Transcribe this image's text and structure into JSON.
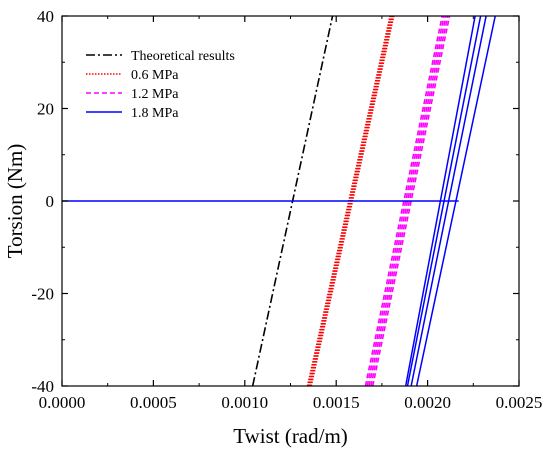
{
  "chart_data": {
    "type": "line",
    "xlabel": "Twist (rad/m)",
    "ylabel": "Torsion (Nm)",
    "xlim": [
      0.0,
      0.0025
    ],
    "ylim": [
      -40,
      40
    ],
    "xticks": [
      0.0,
      0.0005,
      0.001,
      0.0015,
      0.002,
      0.0025
    ],
    "xtick_labels": [
      "0.0000",
      "0.0005",
      "0.0010",
      "0.0015",
      "0.0020",
      "0.0025"
    ],
    "yticks": [
      -40,
      -20,
      0,
      20,
      40
    ],
    "ytick_labels": [
      "-40",
      "-20",
      "0",
      "20",
      "40"
    ],
    "grid": false,
    "legend_position": "top-left",
    "series": [
      {
        "name": "Theoretical results",
        "color": "#000000",
        "style": "dashdot",
        "segments": [
          [
            [
              0.001043,
              -40
            ],
            [
              0.00148,
              40
            ]
          ]
        ]
      },
      {
        "name": "0.6 MPa",
        "color": "#ff0000",
        "style": "dotted",
        "segments": [
          [
            [
              0.001343,
              -40
            ],
            [
              0.001795,
              40
            ]
          ],
          [
            [
              0.001348,
              -40
            ],
            [
              0.0018,
              40
            ]
          ],
          [
            [
              0.001353,
              -40
            ],
            [
              0.001805,
              40
            ]
          ],
          [
            [
              0.001358,
              -40
            ],
            [
              0.00181,
              40
            ]
          ],
          [
            [
              0.001363,
              -40
            ],
            [
              0.001815,
              40
            ]
          ]
        ]
      },
      {
        "name": "1.2 MPa",
        "color": "#ff00ff",
        "style": "dashed",
        "segments": [
          [
            [
              0.00166,
              -40
            ],
            [
              0.00208,
              40
            ]
          ],
          [
            [
              0.00167,
              -40
            ],
            [
              0.00209,
              40
            ]
          ],
          [
            [
              0.00168,
              -40
            ],
            [
              0.0021,
              40
            ]
          ],
          [
            [
              0.00169,
              -40
            ],
            [
              0.00211,
              40
            ]
          ],
          [
            [
              0.0017,
              -40
            ],
            [
              0.00212,
              40
            ]
          ]
        ]
      },
      {
        "name": "1.8 MPa",
        "color": "#0000ff",
        "style": "solid",
        "segments": [
          [
            [
              0.0,
              0
            ],
            [
              0.00217,
              0
            ]
          ],
          [
            [
              0.00188,
              -40
            ],
            [
              0.00226,
              40
            ]
          ],
          [
            [
              0.00189,
              -40
            ],
            [
              0.00229,
              40
            ]
          ],
          [
            [
              0.00191,
              -40
            ],
            [
              0.00232,
              40
            ]
          ],
          [
            [
              0.00194,
              -40
            ],
            [
              0.00237,
              40
            ]
          ]
        ]
      }
    ]
  }
}
